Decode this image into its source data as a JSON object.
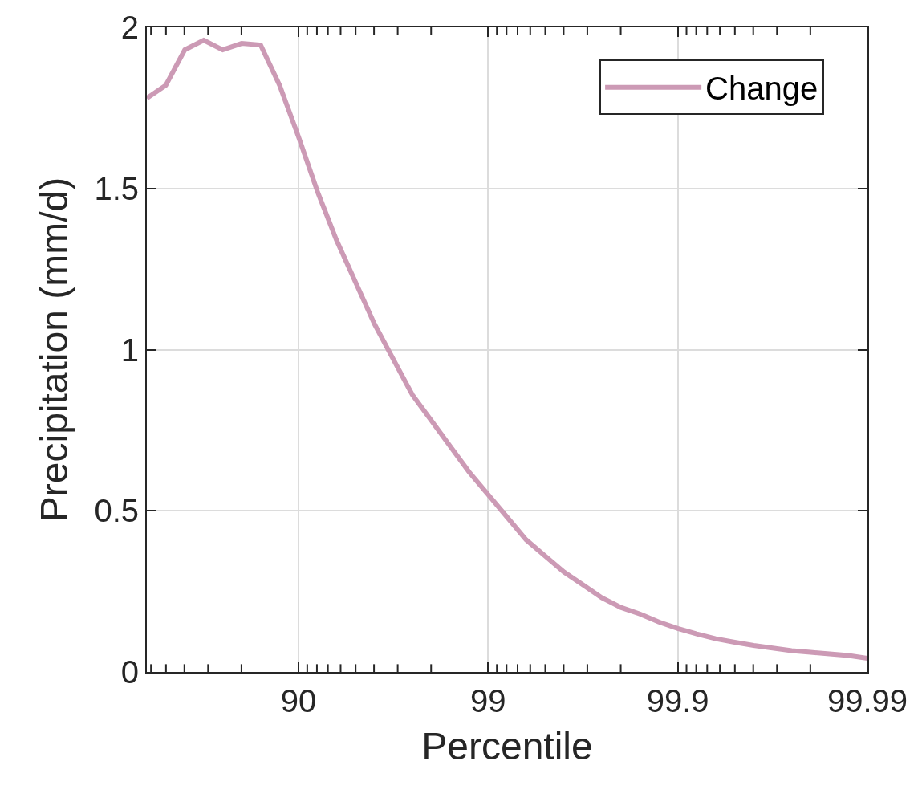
{
  "chart_data": {
    "type": "line",
    "xlabel": "Percentile",
    "ylabel": "Precipitation (mm/d)",
    "categories": [
      null,
      null,
      null,
      null,
      null,
      null,
      null,
      null,
      "90",
      null,
      null,
      null,
      null,
      null,
      null,
      null,
      null,
      null,
      "99",
      null,
      null,
      null,
      null,
      null,
      null,
      null,
      null,
      null,
      "99.9",
      null,
      null,
      null,
      null,
      null,
      null,
      null,
      null,
      null,
      "99.99"
    ],
    "series": [
      {
        "name": "Change",
        "color": "#cc9ab5",
        "values": [
          1.78,
          1.82,
          1.93,
          1.96,
          1.93,
          1.95,
          1.945,
          1.82,
          1.66,
          1.49,
          1.34,
          1.21,
          1.08,
          0.97,
          0.86,
          0.78,
          0.7,
          0.62,
          0.55,
          0.48,
          0.41,
          0.36,
          0.31,
          0.27,
          0.23,
          0.2,
          0.18,
          0.155,
          0.135,
          0.118,
          0.103,
          0.092,
          0.082,
          0.074,
          0.066,
          0.061,
          0.056,
          0.051,
          0.042
        ]
      }
    ],
    "ylim": [
      0,
      2
    ],
    "yticks": [
      0,
      0.5,
      1,
      1.5,
      2
    ],
    "grid": true,
    "legend": "top right",
    "marker": "none",
    "line_style": "solid"
  }
}
